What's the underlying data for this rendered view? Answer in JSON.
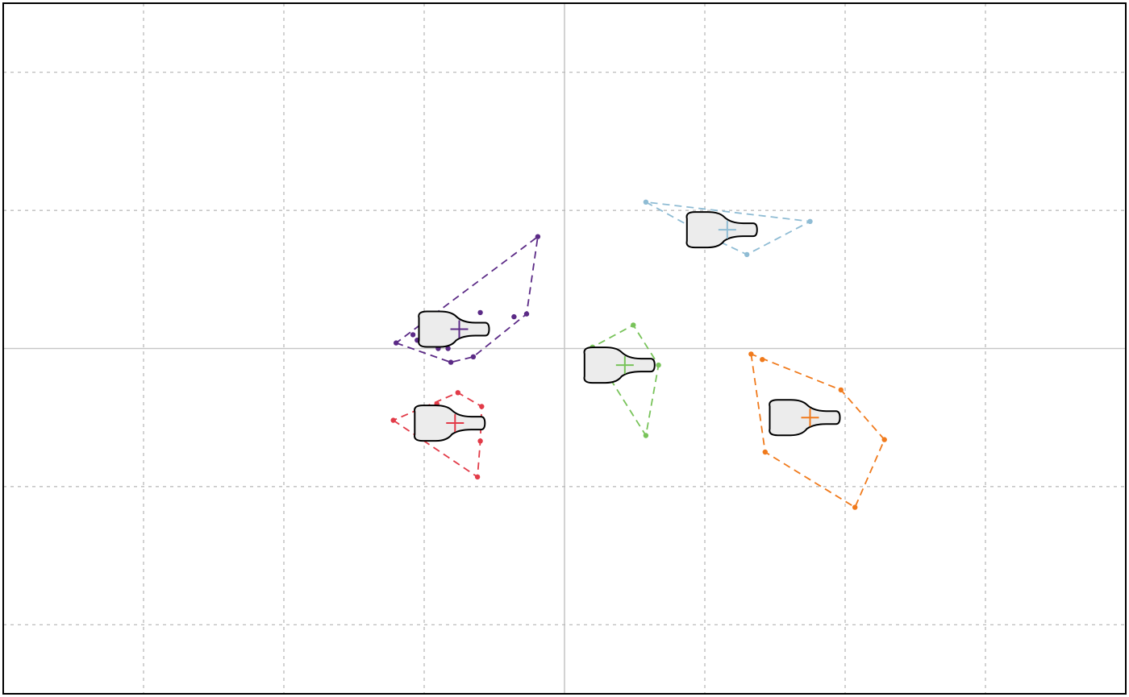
{
  "chart_data": {
    "type": "scatter",
    "title": "",
    "xlabel": "",
    "ylabel": "",
    "xlim": [
      -4,
      4
    ],
    "ylim": [
      -2.5,
      2.5
    ],
    "grid": true,
    "legend": "none",
    "zero_lines": true,
    "series": [
      {
        "color": "#5b2a86",
        "centroid": [
          -0.75,
          0.14
        ],
        "marker": "bottle",
        "hull": true,
        "points": [
          [
            -1.2,
            0.04
          ],
          [
            -1.08,
            0.1
          ],
          [
            -1.05,
            0.06
          ],
          [
            -0.95,
            0.13
          ],
          [
            -0.9,
            0.14
          ],
          [
            -0.85,
            0.12
          ],
          [
            -0.8,
            0.1
          ],
          [
            -0.77,
            0.11
          ],
          [
            -0.73,
            0.15
          ],
          [
            -0.6,
            0.13
          ],
          [
            -0.6,
            0.26
          ],
          [
            -0.9,
            0.0
          ],
          [
            -0.83,
            0.0
          ],
          [
            -0.81,
            -0.1
          ],
          [
            -0.65,
            -0.06
          ],
          [
            -0.36,
            0.23
          ],
          [
            -0.27,
            0.25
          ],
          [
            -0.19,
            0.81
          ]
        ]
      },
      {
        "color": "#8fbcd4",
        "centroid": [
          1.16,
          0.86
        ],
        "marker": "bottle",
        "hull": true,
        "points": [
          [
            0.58,
            1.06
          ],
          [
            1.03,
            0.81
          ],
          [
            1.11,
            0.85
          ],
          [
            1.3,
            0.68
          ],
          [
            1.75,
            0.92
          ]
        ]
      },
      {
        "color": "#78c35a",
        "centroid": [
          0.43,
          -0.12
        ],
        "marker": "bottle",
        "hull": true,
        "points": [
          [
            0.19,
            0.0
          ],
          [
            0.2,
            0.01
          ],
          [
            0.49,
            0.17
          ],
          [
            0.67,
            -0.12
          ],
          [
            0.58,
            -0.63
          ]
        ]
      },
      {
        "color": "#e23b48",
        "centroid": [
          -0.78,
          -0.54
        ],
        "marker": "bottle",
        "hull": true,
        "points": [
          [
            -1.22,
            -0.52
          ],
          [
            -0.91,
            -0.4
          ],
          [
            -0.76,
            -0.32
          ],
          [
            -0.59,
            -0.42
          ],
          [
            -0.6,
            -0.67
          ],
          [
            -0.62,
            -0.93
          ]
        ]
      },
      {
        "color": "#f07a1c",
        "centroid": [
          1.75,
          -0.5
        ],
        "marker": "bottle",
        "hull": true,
        "points": [
          [
            1.33,
            -0.04
          ],
          [
            1.41,
            -0.08
          ],
          [
            1.97,
            -0.3
          ],
          [
            2.28,
            -0.66
          ],
          [
            1.43,
            -0.75
          ],
          [
            2.07,
            -1.15
          ]
        ]
      }
    ]
  }
}
